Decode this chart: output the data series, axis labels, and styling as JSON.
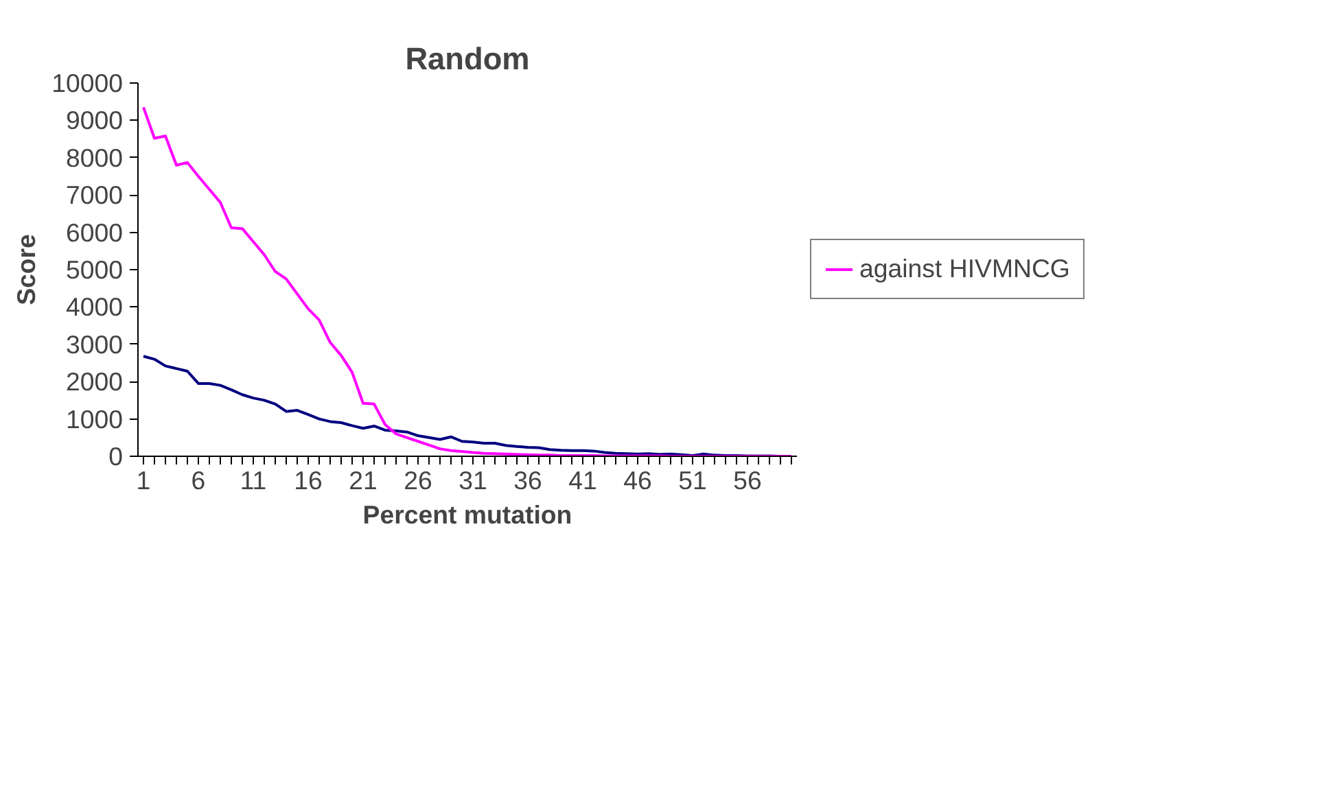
{
  "chart_data": {
    "type": "line",
    "title": "Random",
    "xlabel": "Percent mutation",
    "ylabel": "Score",
    "x": [
      1,
      2,
      3,
      4,
      5,
      6,
      7,
      8,
      9,
      10,
      11,
      12,
      13,
      14,
      15,
      16,
      17,
      18,
      19,
      20,
      21,
      22,
      23,
      24,
      25,
      26,
      27,
      28,
      29,
      30,
      31,
      32,
      33,
      34,
      35,
      36,
      37,
      38,
      39,
      40,
      41,
      42,
      43,
      44,
      45,
      46,
      47,
      48,
      49,
      50,
      51,
      52,
      53,
      54,
      55,
      56,
      57,
      58,
      59,
      60
    ],
    "xlim": [
      0.5,
      60.5
    ],
    "xticks": [
      1,
      {
        "value": 2,
        "label": null
      },
      {
        "value": 3,
        "label": null
      },
      {
        "value": 4,
        "label": null
      },
      {
        "value": 5,
        "label": null
      },
      6,
      {
        "value": 7,
        "label": null
      },
      {
        "value": 8,
        "label": null
      },
      {
        "value": 9,
        "label": null
      },
      {
        "value": 10,
        "label": null
      },
      11,
      {
        "value": 12,
        "label": null
      },
      {
        "value": 13,
        "label": null
      },
      {
        "value": 14,
        "label": null
      },
      {
        "value": 15,
        "label": null
      },
      16,
      {
        "value": 17,
        "label": null
      },
      {
        "value": 18,
        "label": null
      },
      {
        "value": 19,
        "label": null
      },
      {
        "value": 20,
        "label": null
      },
      21,
      {
        "value": 22,
        "label": null
      },
      {
        "value": 23,
        "label": null
      },
      {
        "value": 24,
        "label": null
      },
      {
        "value": 25,
        "label": null
      },
      26,
      {
        "value": 27,
        "label": null
      },
      {
        "value": 28,
        "label": null
      },
      {
        "value": 29,
        "label": null
      },
      {
        "value": 30,
        "label": null
      },
      31,
      {
        "value": 32,
        "label": null
      },
      {
        "value": 33,
        "label": null
      },
      {
        "value": 34,
        "label": null
      },
      {
        "value": 35,
        "label": null
      },
      36,
      {
        "value": 37,
        "label": null
      },
      {
        "value": 38,
        "label": null
      },
      {
        "value": 39,
        "label": null
      },
      {
        "value": 40,
        "label": null
      },
      41,
      {
        "value": 42,
        "label": null
      },
      {
        "value": 43,
        "label": null
      },
      {
        "value": 44,
        "label": null
      },
      {
        "value": 45,
        "label": null
      },
      46,
      {
        "value": 47,
        "label": null
      },
      {
        "value": 48,
        "label": null
      },
      {
        "value": 49,
        "label": null
      },
      {
        "value": 50,
        "label": null
      },
      51,
      {
        "value": 52,
        "label": null
      },
      {
        "value": 53,
        "label": null
      },
      {
        "value": 54,
        "label": null
      },
      {
        "value": 55,
        "label": null
      },
      56,
      {
        "value": 57,
        "label": null
      },
      {
        "value": 58,
        "label": null
      },
      {
        "value": 59,
        "label": null
      },
      {
        "value": 60,
        "label": null
      }
    ],
    "ylim": [
      0,
      10000
    ],
    "yticks": [
      0,
      1000,
      2000,
      3000,
      4000,
      5000,
      6000,
      7000,
      8000,
      9000,
      10000
    ],
    "grid": false,
    "legend": "right",
    "marker": "none",
    "line_style": "solid",
    "series": [
      {
        "color": "#000080",
        "values": [
          2680,
          2600,
          2420,
          2350,
          2280,
          1950,
          1950,
          1900,
          1780,
          1650,
          1560,
          1500,
          1400,
          1200,
          1230,
          1120,
          1000,
          930,
          900,
          820,
          750,
          810,
          700,
          680,
          650,
          550,
          500,
          450,
          520,
          400,
          380,
          350,
          350,
          290,
          260,
          240,
          230,
          180,
          160,
          150,
          150,
          140,
          100,
          80,
          70,
          60,
          70,
          50,
          60,
          40,
          20,
          60,
          30,
          20,
          20,
          10,
          10,
          10,
          0,
          0
        ]
      },
      {
        "name": "against HIVMNCG",
        "color": "#ff00ff",
        "values": [
          9350,
          8520,
          8580,
          7800,
          7870,
          7500,
          7150,
          6800,
          6120,
          6100,
          5750,
          5400,
          4950,
          4750,
          4350,
          3950,
          3650,
          3050,
          2700,
          2250,
          1420,
          1400,
          850,
          600,
          500,
          400,
          300,
          200,
          150,
          130,
          100,
          80,
          70,
          60,
          50,
          40,
          30,
          30,
          20,
          20,
          20,
          20,
          10,
          10,
          10,
          10,
          10,
          10,
          0,
          0,
          0,
          0,
          0,
          0,
          0,
          0,
          0,
          0,
          0,
          0
        ]
      }
    ]
  }
}
